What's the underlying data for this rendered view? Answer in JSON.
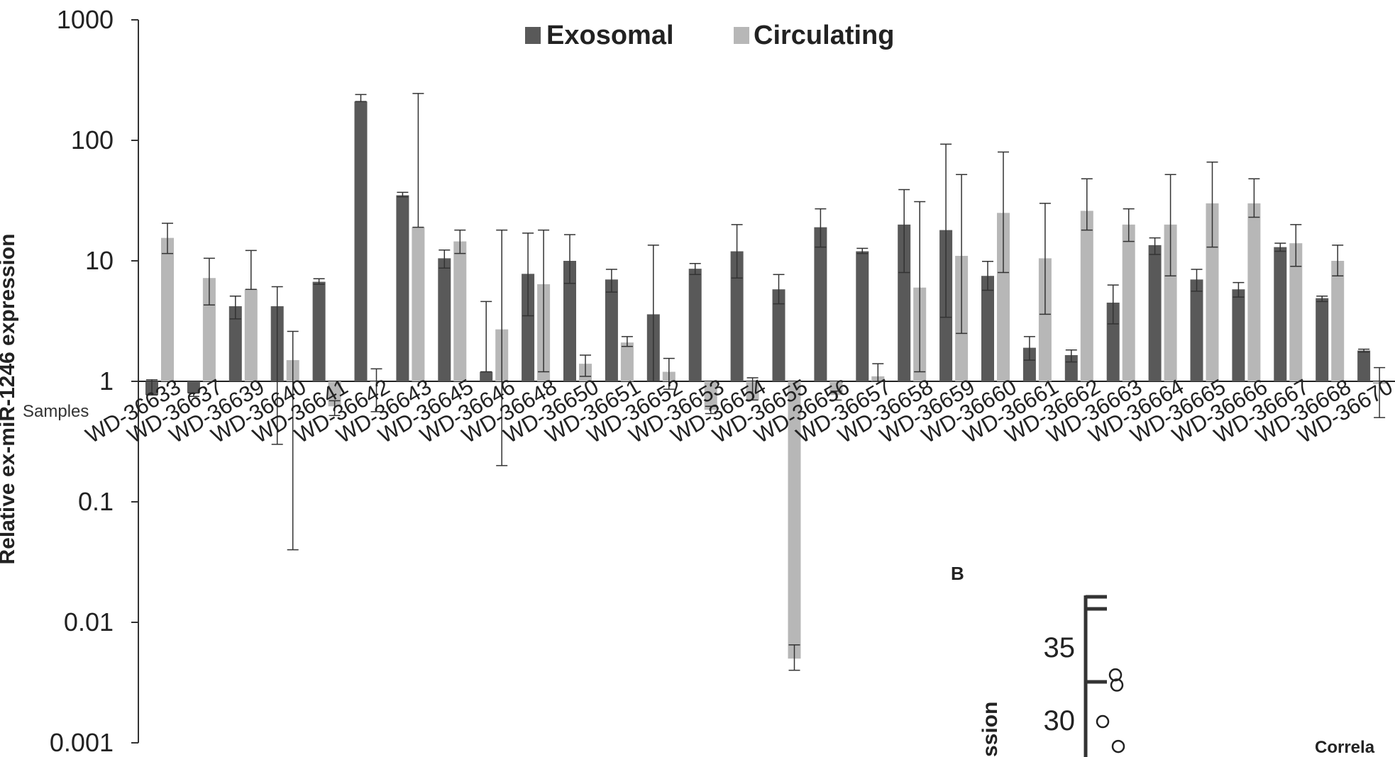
{
  "chart_data": [
    {
      "type": "bar",
      "panel_label": "",
      "ylabel": "Relative ex-miR-1246 expression",
      "xlabel": "Samples",
      "yscale": "log",
      "ylim": [
        0.001,
        1000
      ],
      "yticks": [
        0.001,
        0.01,
        0.1,
        1,
        10,
        100,
        1000
      ],
      "ytick_labels": [
        "0.001",
        "0.01",
        "0.1",
        "1",
        "10",
        "100",
        "1000"
      ],
      "baseline": 1,
      "legend": "top-center",
      "grid": false,
      "categories": [
        "WD-36633",
        "WD-36637",
        "WD-36639",
        "WD-36640",
        "WD-36641",
        "WD-36642",
        "WD-36643",
        "WD-36645",
        "WD-36646",
        "WD-36648",
        "WD-36650",
        "WD-36651",
        "WD-36652",
        "WD-36653",
        "WD-36654",
        "WD-36655",
        "WD-36656",
        "WD-36657",
        "WD-36658",
        "WD-36659",
        "WD-36660",
        "WD-36661",
        "WD-36662",
        "WD-36663",
        "WD-36664",
        "WD-36665",
        "WD-36666",
        "WD-36667",
        "WD-36668",
        "WD-36670"
      ],
      "series": [
        {
          "name": "Exosomal",
          "color": "#595959",
          "values": [
            0.77,
            0.8,
            4.2,
            4.2,
            6.7,
            210,
            35,
            10.5,
            1.2,
            7.8,
            10,
            7,
            3.6,
            8.6,
            12,
            5.8,
            19,
            12,
            20,
            18,
            7.5,
            1.9,
            1.65,
            4.5,
            13.5,
            7,
            5.8,
            13,
            4.9,
            1.8
          ],
          "err_low": [
            0.77,
            0.75,
            3.3,
            0.3,
            6.4,
            210,
            34,
            8.7,
            1.2,
            3.5,
            6.5,
            5.5,
            1.0,
            7.7,
            7.2,
            4.4,
            13,
            11.5,
            8,
            3.4,
            5.7,
            1.5,
            1.45,
            3.0,
            11.3,
            5.6,
            5.0,
            12,
            4.6,
            1.75
          ],
          "err_high": [
            1.03,
            0.8,
            5.1,
            6.1,
            7.1,
            240,
            37,
            12.3,
            4.6,
            17,
            16.5,
            8.5,
            13.5,
            9.5,
            20,
            7.7,
            27,
            12.7,
            39,
            93,
            9.9,
            2.35,
            1.82,
            6.3,
            15.5,
            8.5,
            6.6,
            14,
            5.1,
            1.85
          ]
        },
        {
          "name": "Circulating",
          "color": "#b7b7b7",
          "values": [
            15.5,
            7.2,
            5.8,
            1.5,
            0.62,
            1,
            19,
            14.5,
            2.7,
            6.4,
            1.4,
            2.1,
            1.2,
            0.58,
            0.7,
            0.005,
            0.77,
            1.1,
            6,
            11,
            25,
            10.5,
            26,
            20,
            20,
            30,
            30,
            14,
            10,
            0.95
          ],
          "err_low": [
            11.5,
            4.3,
            5.8,
            0.04,
            0.52,
            0.56,
            19,
            11.5,
            0.2,
            1.2,
            1.1,
            1.95,
            0.86,
            0.54,
            0.7,
            0.004,
            0.7,
            1.0,
            1.2,
            2.5,
            8,
            3.6,
            18,
            14.5,
            7.5,
            13,
            23,
            9,
            7.5,
            0.5
          ],
          "err_high": [
            20.5,
            10.5,
            12.2,
            2.6,
            0.69,
            1.27,
            245,
            18,
            18,
            18,
            1.65,
            2.35,
            1.55,
            0.62,
            1.07,
            0.0065,
            0.83,
            1.4,
            31,
            52,
            80,
            30,
            48,
            27,
            52,
            66,
            48,
            20,
            13.5,
            1.3
          ]
        }
      ]
    },
    {
      "type": "scatter",
      "panel_label": "B",
      "ylabel_fragment": "ssion",
      "title_fragment": "Correla",
      "yticks": [
        30,
        35
      ],
      "ytick_labels": [
        "30",
        "35"
      ],
      "points": [
        {
          "x": 0.21,
          "y": 33.1
        },
        {
          "x": 0.22,
          "y": 32.4
        },
        {
          "x": 0.12,
          "y": 29.9
        },
        {
          "x": 0.23,
          "y": 28.2
        }
      ]
    }
  ]
}
